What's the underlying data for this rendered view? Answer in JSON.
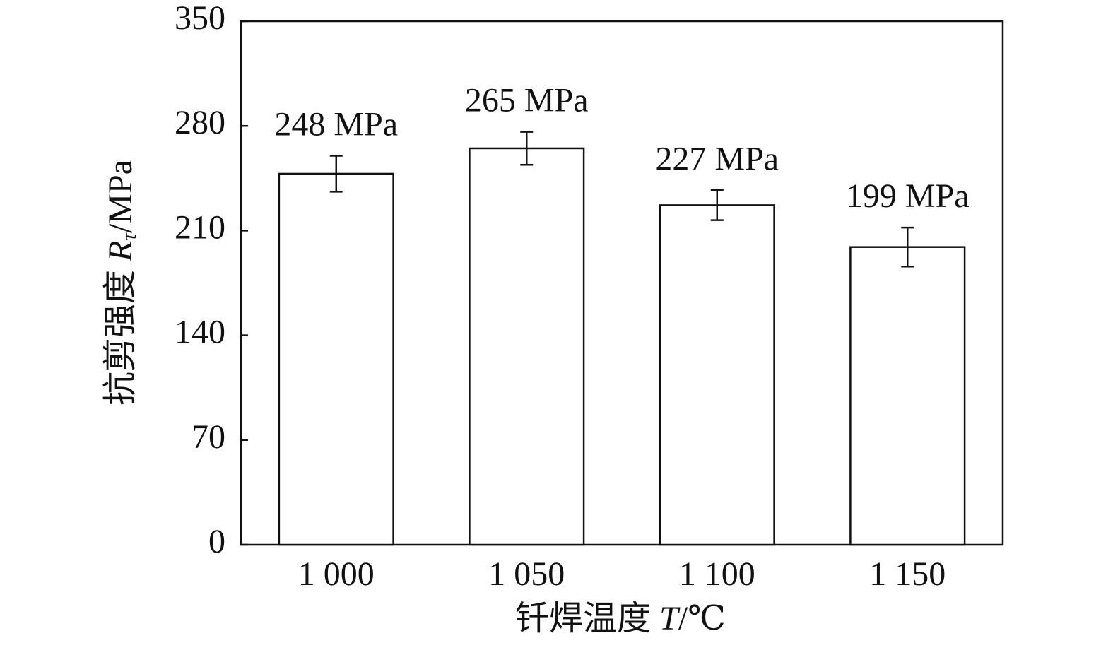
{
  "chart_data": {
    "type": "bar",
    "xlabel": [
      "钎焊温度 ",
      "T",
      "/℃"
    ],
    "ylabel": [
      "抗剪强度 ",
      "R",
      "τ",
      "/MPa"
    ],
    "categories": [
      "1 000",
      "1 050",
      "1 100",
      "1 150"
    ],
    "values": [
      248,
      265,
      227,
      199
    ],
    "value_labels": [
      "248 MPa",
      "265 MPa",
      "227 MPa",
      "199 MPa"
    ],
    "errors": [
      12,
      11,
      10,
      13
    ],
    "color": "#ffffff",
    "ylim": [
      0,
      350
    ],
    "yticks": [
      0,
      70,
      140,
      210,
      280,
      350
    ],
    "grid": false
  }
}
